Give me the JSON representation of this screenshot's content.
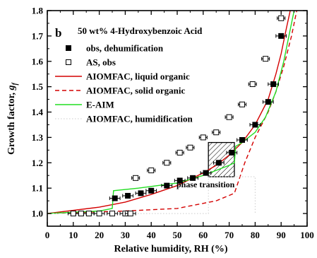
{
  "chart_data": {
    "type": "line",
    "panel_label": "b",
    "title": "50 wt% 4-Hydroxybenzoic Acid",
    "xlabel": "Relative humidity, RH (%)",
    "ylabel_main": "Growth factor, ",
    "ylabel_sym": "g",
    "ylabel_sub": "f",
    "xlim": [
      0,
      100
    ],
    "ylim": [
      0.95,
      1.8
    ],
    "x_ticks": [
      0,
      10,
      20,
      30,
      40,
      50,
      60,
      70,
      80,
      90,
      100
    ],
    "x_tick_labels": [
      "0",
      "10",
      "20",
      "30",
      "40",
      "50",
      "60",
      "70",
      "80",
      "90",
      "100"
    ],
    "y_ticks": [
      1.0,
      1.1,
      1.2,
      1.3,
      1.4,
      1.5,
      1.6,
      1.7,
      1.8
    ],
    "y_tick_labels": [
      "1.0",
      "1.1",
      "1.2",
      "1.3",
      "1.4",
      "1.5",
      "1.6",
      "1.7",
      "1.8"
    ],
    "grid": false,
    "legend_position": "top-left",
    "annotation": {
      "text": "phase transition",
      "region_x": [
        62,
        72
      ],
      "region_y": [
        1.145,
        1.28
      ]
    },
    "series": [
      {
        "name": "obs, dehumification",
        "kind": "scatter",
        "marker": "filled-square",
        "color": "#000000",
        "points": [
          {
            "x": 26,
            "y": 1.06,
            "xerr": 2
          },
          {
            "x": 31,
            "y": 1.07,
            "xerr": 2
          },
          {
            "x": 36,
            "y": 1.08,
            "xerr": 2
          },
          {
            "x": 40,
            "y": 1.09,
            "xerr": 2
          },
          {
            "x": 46,
            "y": 1.11,
            "xerr": 2
          },
          {
            "x": 51,
            "y": 1.13,
            "xerr": 2
          },
          {
            "x": 56,
            "y": 1.14,
            "xerr": 2
          },
          {
            "x": 61,
            "y": 1.16,
            "xerr": 2
          },
          {
            "x": 66,
            "y": 1.2,
            "xerr": 2
          },
          {
            "x": 71,
            "y": 1.24,
            "xerr": 2
          },
          {
            "x": 75,
            "y": 1.29,
            "xerr": 2
          },
          {
            "x": 80,
            "y": 1.35,
            "xerr": 2
          },
          {
            "x": 85,
            "y": 1.44,
            "xerr": 2
          },
          {
            "x": 87,
            "y": 1.51,
            "xerr": 2
          },
          {
            "x": 90,
            "y": 1.7,
            "xerr": 2
          }
        ]
      },
      {
        "name": "AS, obs",
        "kind": "scatter",
        "marker": "open-square",
        "color": "#000000",
        "points": [
          {
            "x": 10,
            "y": 1.0,
            "xerr": 2
          },
          {
            "x": 13,
            "y": 1.0,
            "xerr": 2
          },
          {
            "x": 16,
            "y": 1.0,
            "xerr": 2
          },
          {
            "x": 20,
            "y": 1.0,
            "xerr": 2
          },
          {
            "x": 25,
            "y": 1.0,
            "xerr": 2
          },
          {
            "x": 30,
            "y": 1.0,
            "xerr": 2
          },
          {
            "x": 32,
            "y": 1.0,
            "xerr": 2
          },
          {
            "x": 34,
            "y": 1.14,
            "xerr": 1.5
          },
          {
            "x": 40,
            "y": 1.17,
            "xerr": 1.5
          },
          {
            "x": 46,
            "y": 1.2,
            "xerr": 1.5
          },
          {
            "x": 51,
            "y": 1.24,
            "xerr": 1.5
          },
          {
            "x": 55,
            "y": 1.26,
            "xerr": 1.5
          },
          {
            "x": 60,
            "y": 1.3,
            "xerr": 1.5
          },
          {
            "x": 65,
            "y": 1.32,
            "xerr": 1.5
          },
          {
            "x": 70,
            "y": 1.38,
            "xerr": 1.5
          },
          {
            "x": 75,
            "y": 1.43,
            "xerr": 1.5
          },
          {
            "x": 79,
            "y": 1.51,
            "xerr": 1.5
          },
          {
            "x": 84,
            "y": 1.61,
            "xerr": 1.5
          },
          {
            "x": 90,
            "y": 1.77,
            "xerr": 1.5
          }
        ]
      },
      {
        "name": "AIOMFAC, liquid organic",
        "kind": "line",
        "color": "#d40000",
        "dash": "solid",
        "points": [
          [
            0,
            1.0
          ],
          [
            20,
            1.025
          ],
          [
            30,
            1.045
          ],
          [
            40,
            1.075
          ],
          [
            50,
            1.11
          ],
          [
            60,
            1.16
          ],
          [
            65,
            1.19
          ],
          [
            70,
            1.23
          ],
          [
            75,
            1.28
          ],
          [
            80,
            1.35
          ],
          [
            85,
            1.45
          ],
          [
            88,
            1.55
          ],
          [
            90,
            1.63
          ],
          [
            92,
            1.73
          ],
          [
            93.5,
            1.8
          ]
        ]
      },
      {
        "name": "AIOMFAC, solid organic",
        "kind": "line",
        "color": "#d40000",
        "dash": "dashed",
        "points": [
          [
            0,
            1.0
          ],
          [
            30,
            1.01
          ],
          [
            50,
            1.02
          ],
          [
            65,
            1.05
          ],
          [
            72,
            1.08
          ],
          [
            76,
            1.2
          ],
          [
            80,
            1.3
          ],
          [
            85,
            1.4
          ],
          [
            88,
            1.48
          ],
          [
            91,
            1.58
          ],
          [
            94,
            1.7
          ],
          [
            96,
            1.8
          ]
        ]
      },
      {
        "name": "E-AIM",
        "kind": "line",
        "color": "#22dd22",
        "dash": "solid",
        "points": [
          [
            0,
            1.0
          ],
          [
            20,
            1.01
          ],
          [
            25,
            1.02
          ],
          [
            25.5,
            1.09
          ],
          [
            35,
            1.1
          ],
          [
            50,
            1.12
          ],
          [
            60,
            1.15
          ],
          [
            70,
            1.19
          ],
          [
            72,
            1.2
          ],
          [
            72.5,
            1.265
          ],
          [
            75,
            1.28
          ],
          [
            80,
            1.32
          ],
          [
            84,
            1.38
          ],
          [
            88,
            1.48
          ],
          [
            91,
            1.6
          ],
          [
            93,
            1.7
          ],
          [
            95,
            1.8
          ]
        ]
      },
      {
        "name": "AIOMFAC, humidification",
        "kind": "line",
        "color": "#cccccc",
        "dash": "dotted",
        "points": [
          [
            0,
            1.0
          ],
          [
            40,
            1.0
          ],
          [
            62,
            1.0
          ],
          [
            62,
            1.145
          ],
          [
            80,
            1.145
          ],
          [
            80,
            1.0
          ]
        ]
      }
    ]
  }
}
